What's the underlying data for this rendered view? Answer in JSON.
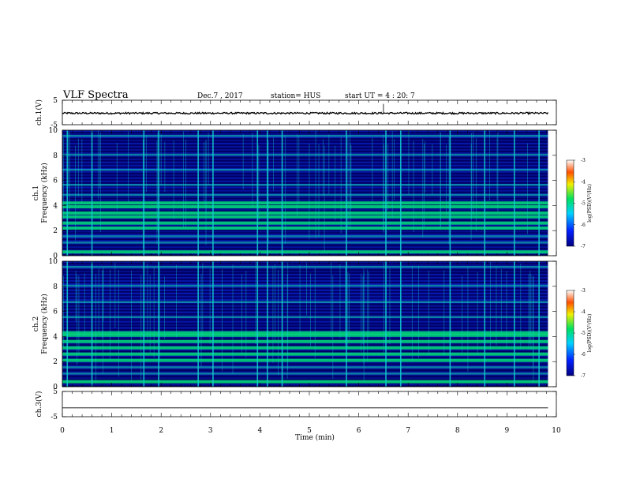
{
  "header": {
    "title": "VLF Spectra",
    "date": "Dec.7 , 2017",
    "station": "station= HUS",
    "start": "start  UT =  4 : 20: 7"
  },
  "chart_data": [
    {
      "type": "line",
      "name": "waveform-ch1",
      "ylabel": "ch.1(V)",
      "ylim": [
        -5,
        5
      ],
      "yticks": [
        "5",
        "-5"
      ],
      "xlim": [
        0,
        10
      ],
      "level": -0.3,
      "noise": 0.35
    },
    {
      "type": "heatmap",
      "name": "spectrogram-ch1",
      "ylabel_top": "ch.1",
      "ylabel": "Frequency  (kHz)",
      "ylim": [
        0,
        10
      ],
      "yticks": [
        "0",
        "2",
        "4",
        "6",
        "8",
        "10"
      ],
      "xlim": [
        0,
        9.83
      ],
      "colorbar": {
        "label": "log(PSD)(V²/Hz)",
        "range": [
          -7,
          -3
        ],
        "ticks": [
          "-3",
          "-4",
          "-5",
          "-6",
          "-7"
        ]
      },
      "bands_khz": [
        0.3,
        1.0,
        1.5,
        2.2,
        2.6,
        3.1,
        3.4,
        3.9,
        4.2,
        4.8,
        5.6,
        6.8,
        8.0,
        9.5
      ],
      "spikes_min": [
        0.1,
        0.6,
        1.65,
        1.95,
        2.75,
        3.05,
        3.95,
        4.15,
        4.45,
        5.75,
        6.55,
        6.85,
        7.85,
        8.55,
        9.15,
        9.65
      ]
    },
    {
      "type": "heatmap",
      "name": "spectrogram-ch2",
      "ylabel_top": "ch.2",
      "ylabel": "Frequency  (kHz)",
      "ylim": [
        0,
        10
      ],
      "yticks": [
        "0",
        "2",
        "4",
        "6",
        "8",
        "10"
      ],
      "xlim": [
        0,
        9.83
      ],
      "colorbar": {
        "label": "log(PSD)(V²/Hz)",
        "range": [
          -7,
          -3
        ],
        "ticks": [
          "-3",
          "-4",
          "-5",
          "-6",
          "-7"
        ]
      },
      "bands_khz": [
        0.4,
        1.0,
        1.5,
        2.1,
        2.6,
        3.1,
        3.6,
        4.1,
        4.3,
        5.5,
        6.7,
        8.0,
        9.5
      ],
      "spikes_min": [
        0.1,
        0.6,
        1.65,
        1.95,
        2.75,
        3.05,
        3.95,
        4.15,
        4.45,
        5.75,
        6.55,
        6.85,
        7.85,
        8.55,
        9.15,
        9.65
      ]
    },
    {
      "type": "line",
      "name": "waveform-ch3",
      "ylabel": "ch.3(V)",
      "ylim": [
        -5,
        5
      ],
      "yticks": [
        "5",
        "-5"
      ],
      "xlim": [
        0,
        10
      ],
      "level": -1.5,
      "noise": 0
    }
  ],
  "xaxis": {
    "label": "Time  (min)",
    "ticks": [
      "0",
      "1",
      "2",
      "3",
      "4",
      "5",
      "6",
      "7",
      "8",
      "9",
      "10"
    ],
    "range": [
      0,
      10
    ]
  },
  "colors": {
    "background": "#000060",
    "low": "#0a20c8",
    "band": "#00e07a",
    "spike": "#10d0d0"
  }
}
